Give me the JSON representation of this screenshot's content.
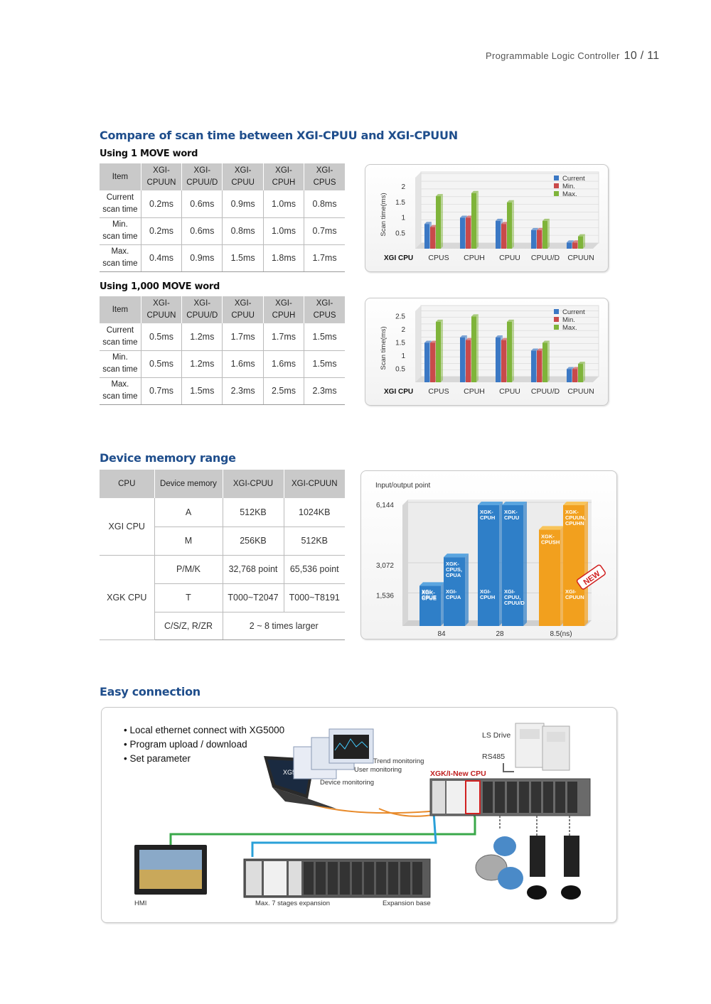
{
  "header": {
    "title": "Programmable Logic Controller",
    "page": "10 / 11"
  },
  "scan_section": {
    "title": "Compare of scan time between XGI-CPUU and XGI-CPUUN",
    "table1": {
      "subtitle": "Using 1 MOVE word",
      "headers": [
        "Item",
        "XGI-\nCPUUN",
        "XGI-\nCPUU/D",
        "XGI-\nCPUU",
        "XGI-\nCPUH",
        "XGI-\nCPUS"
      ],
      "rows": [
        {
          "label": "Current\nscan time",
          "cells": [
            "0.2ms",
            "0.6ms",
            "0.9ms",
            "1.0ms",
            "0.8ms"
          ]
        },
        {
          "label": "Min.\nscan time",
          "cells": [
            "0.2ms",
            "0.6ms",
            "0.8ms",
            "1.0ms",
            "0.7ms"
          ]
        },
        {
          "label": "Max.\nscan time",
          "cells": [
            "0.4ms",
            "0.9ms",
            "1.5ms",
            "1.8ms",
            "1.7ms"
          ]
        }
      ]
    },
    "table2": {
      "subtitle": "Using 1,000 MOVE word",
      "headers": [
        "Item",
        "XGI-\nCPUUN",
        "XGI-\nCPUU/D",
        "XGI-\nCPUU",
        "XGI-\nCPUH",
        "XGI-\nCPUS"
      ],
      "rows": [
        {
          "label": "Current\nscan time",
          "cells": [
            "0.5ms",
            "1.2ms",
            "1.7ms",
            "1.7ms",
            "1.5ms"
          ]
        },
        {
          "label": "Min.\nscan time",
          "cells": [
            "0.5ms",
            "1.2ms",
            "1.6ms",
            "1.6ms",
            "1.5ms"
          ]
        },
        {
          "label": "Max.\nscan time",
          "cells": [
            "0.7ms",
            "1.5ms",
            "2.3ms",
            "2.5ms",
            "2.3ms"
          ]
        }
      ]
    }
  },
  "chart_data": [
    {
      "type": "bar",
      "ylabel": "Scan time(ms)",
      "xlabel": "XGI CPU",
      "categories": [
        "CPUS",
        "CPUH",
        "CPUU",
        "CPUU/D",
        "CPUUN"
      ],
      "yticks": [
        0.5,
        1,
        1.5,
        2
      ],
      "ylim": [
        0,
        2.3
      ],
      "legend": "top-right",
      "series": [
        {
          "name": "Current",
          "color": "#3b78c4",
          "values": [
            0.8,
            1.0,
            0.9,
            0.6,
            0.2
          ]
        },
        {
          "name": "Min.",
          "color": "#c94a4a",
          "values": [
            0.7,
            1.0,
            0.8,
            0.6,
            0.2
          ]
        },
        {
          "name": "Max.",
          "color": "#7fb43a",
          "values": [
            1.7,
            1.8,
            1.5,
            0.9,
            0.4
          ]
        }
      ]
    },
    {
      "type": "bar",
      "ylabel": "Scan time(ms)",
      "xlabel": "XGI CPU",
      "categories": [
        "CPUS",
        "CPUH",
        "CPUU",
        "CPUU/D",
        "CPUUN"
      ],
      "yticks": [
        0.5,
        1,
        1.5,
        2,
        2.5
      ],
      "ylim": [
        0,
        2.7
      ],
      "legend": "top-right",
      "series": [
        {
          "name": "Current",
          "color": "#3b78c4",
          "values": [
            1.5,
            1.7,
            1.7,
            1.2,
            0.5
          ]
        },
        {
          "name": "Min.",
          "color": "#c94a4a",
          "values": [
            1.5,
            1.6,
            1.6,
            1.2,
            0.5
          ]
        },
        {
          "name": "Max.",
          "color": "#7fb43a",
          "values": [
            2.3,
            2.5,
            2.3,
            1.5,
            0.7
          ]
        }
      ]
    },
    {
      "type": "bar",
      "ylabel": "Input/output point",
      "yticks": [
        1536,
        3072,
        6144
      ],
      "groups": [
        "84",
        "28",
        "8.5(ns)"
      ],
      "bars": [
        {
          "group": 0,
          "value": 2048,
          "color": "blue",
          "top_label": "XGK-\nCPUE",
          "bottom_label": "XGI-\nCPUE"
        },
        {
          "group": 0,
          "value": 3500,
          "color": "blue",
          "top_label": "XGK-\nCPUS,\nCPUA",
          "bottom_label": "XGI-\nCPUA"
        },
        {
          "group": 1,
          "value": 6144,
          "color": "blue",
          "top_label": "XGK-\nCPUH",
          "bottom_label": "XGI-\nCPUH"
        },
        {
          "group": 1,
          "value": 6144,
          "color": "blue",
          "top_label": "XGK-\nCPUU",
          "bottom_label": "XGI-\nCPUU,\nCPUU/D"
        },
        {
          "group": 2,
          "value": 4900,
          "color": "orange",
          "top_label": "XGK-\nCPUSH",
          "bottom_label": ""
        },
        {
          "group": 2,
          "value": 6144,
          "color": "orange",
          "top_label": "XGK-\nCPUUN,\nCPUHN",
          "bottom_label": "XGI-\nCPUUN"
        }
      ],
      "badge": "NEW"
    }
  ],
  "memory_section": {
    "title": "Device memory range",
    "headers": [
      "CPU",
      "Device memory",
      "XGI-CPUU",
      "XGI-CPUUN"
    ],
    "xgi": {
      "cpu": "XGI CPU",
      "rows": [
        [
          "A",
          "512KB",
          "1024KB"
        ],
        [
          "M",
          "256KB",
          "512KB"
        ]
      ]
    },
    "xgk": {
      "cpu": "XGK CPU",
      "rows": [
        [
          "P/M/K",
          "32,768 point",
          "65,536 point"
        ],
        [
          "T",
          "T000~T2047",
          "T000~T8191"
        ]
      ],
      "last_label": "C/S/Z, R/ZR",
      "last_value": "2 ~ 8 times larger"
    }
  },
  "connection_section": {
    "title": "Easy connection",
    "bullets": [
      "• Local ethernet connect with XG5000",
      "• Program upload / download",
      "• Set parameter"
    ],
    "labels": {
      "ls_drive": "LS Drive",
      "rs485": "RS485",
      "new_cpu": "XGK/I-New CPU",
      "trend": "Trend monitoring",
      "user": "User monitoring",
      "device": "Device monitoring",
      "hmi": "HMI",
      "max_exp": "Max. 7 stages expansion",
      "exp_base": "Expansion base",
      "laptop_brand": "XG5000"
    }
  }
}
